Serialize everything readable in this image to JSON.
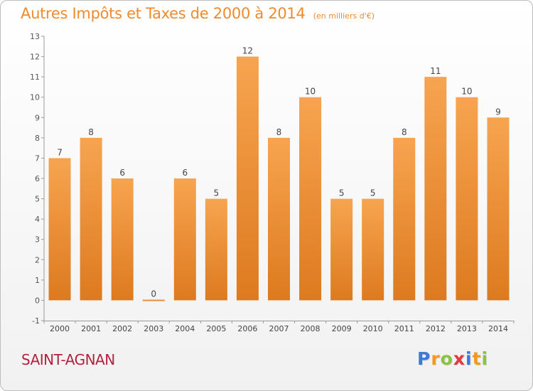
{
  "chart_data": {
    "type": "bar",
    "title": "Autres Impôts et Taxes de 2000 à 2014",
    "unit": "(en milliers d'€)",
    "categories": [
      "2000",
      "2001",
      "2002",
      "2003",
      "2004",
      "2005",
      "2006",
      "2007",
      "2008",
      "2009",
      "2010",
      "2011",
      "2012",
      "2013",
      "2014"
    ],
    "values": [
      7,
      8,
      6,
      0,
      6,
      5,
      12,
      8,
      10,
      5,
      5,
      8,
      11,
      10,
      9
    ],
    "ylim": [
      -1,
      13
    ],
    "yticks": [
      -1,
      0,
      1,
      2,
      3,
      4,
      5,
      6,
      7,
      8,
      9,
      10,
      11,
      12,
      13
    ],
    "grid": false,
    "bar_color_light": "#f7a450",
    "bar_color_dark": "#dd7a1f"
  },
  "footer": {
    "location": "SAINT-AGNAN",
    "brand_letters": [
      {
        "ch": "P",
        "color": "#3d7ad6"
      },
      {
        "ch": "r",
        "color": "#f29a1f"
      },
      {
        "ch": "o",
        "color": "#8ac43f"
      },
      {
        "ch": "x",
        "color": "#e2383f"
      },
      {
        "ch": "i",
        "color": "#3d7ad6"
      },
      {
        "ch": "t",
        "color": "#f29a1f"
      },
      {
        "ch": "i",
        "color": "#8ac43f"
      }
    ]
  }
}
